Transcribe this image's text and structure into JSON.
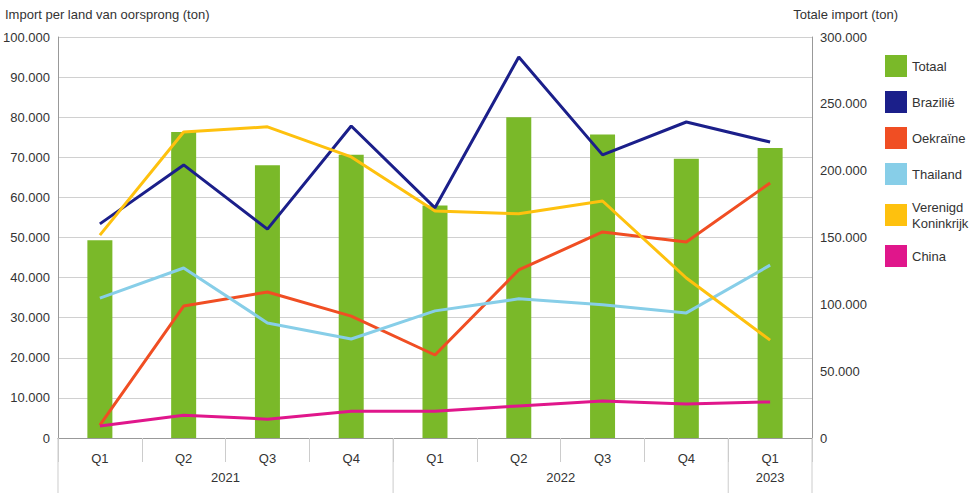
{
  "chart_data": {
    "type": "bar",
    "ylabel": "Import per land van oorsprong (ton)",
    "y2label": "Totale import (ton)",
    "categories": [
      "Q1",
      "Q2",
      "Q3",
      "Q4",
      "Q1",
      "Q2",
      "Q3",
      "Q4",
      "Q1"
    ],
    "category_groups": [
      {
        "name": "2021",
        "count": 4
      },
      {
        "name": "2022",
        "count": 4
      },
      {
        "name": "2023",
        "count": 1
      }
    ],
    "series": [
      {
        "name": "Totaal",
        "type": "bar",
        "axis": "y2",
        "color": "#7ab929",
        "values": [
          148000,
          229000,
          204000,
          212000,
          174000,
          240000,
          227000,
          209000,
          217000
        ]
      },
      {
        "name": "Brazilië",
        "type": "line",
        "color": "#1b1f8a",
        "values": [
          53400,
          68100,
          52100,
          77800,
          57400,
          95000,
          70600,
          78800,
          73800
        ]
      },
      {
        "name": "Oekraïne",
        "type": "line",
        "color": "#f04e23",
        "values": [
          3200,
          32900,
          36400,
          30400,
          20700,
          41900,
          51400,
          48900,
          63600
        ]
      },
      {
        "name": "Thailand",
        "type": "line",
        "color": "#87cee8",
        "values": [
          34900,
          42400,
          28700,
          24700,
          31700,
          34700,
          33200,
          31200,
          43100
        ]
      },
      {
        "name": "Verenigd Koninkrijk",
        "type": "line",
        "color": "#fec10e",
        "values": [
          50600,
          76300,
          77600,
          70100,
          56600,
          55900,
          59100,
          39900,
          24400
        ]
      },
      {
        "name": "China",
        "type": "line",
        "color": "#e0168b",
        "values": [
          3000,
          5700,
          4700,
          6700,
          6700,
          8000,
          9200,
          8500,
          9000
        ]
      }
    ],
    "ylim": [
      0,
      100000
    ],
    "yticks": [
      0,
      {
        "value": 10000,
        "label": "10.000"
      },
      {
        "value": 20000,
        "label": "20.000"
      },
      {
        "value": 30000,
        "label": "30.000"
      },
      {
        "value": 40000,
        "label": "40.000"
      },
      {
        "value": 50000,
        "label": "50.000"
      },
      {
        "value": 60000,
        "label": "60.000"
      },
      {
        "value": 70000,
        "label": "70.000"
      },
      {
        "value": 80000,
        "label": "80.000"
      },
      {
        "value": 90000,
        "label": "90.000"
      },
      {
        "value": 100000,
        "label": "100.000"
      }
    ],
    "y2lim": [
      0,
      300000
    ],
    "y2ticks": [
      0,
      {
        "value": 50000,
        "label": "50.000"
      },
      {
        "value": 100000,
        "label": "100.000"
      },
      {
        "value": 150000,
        "label": "150.000"
      },
      {
        "value": 200000,
        "label": "200.000"
      },
      {
        "value": 250000,
        "label": "250.000"
      },
      {
        "value": 300000,
        "label": "300.000"
      }
    ],
    "grid": true,
    "legend": "right"
  }
}
